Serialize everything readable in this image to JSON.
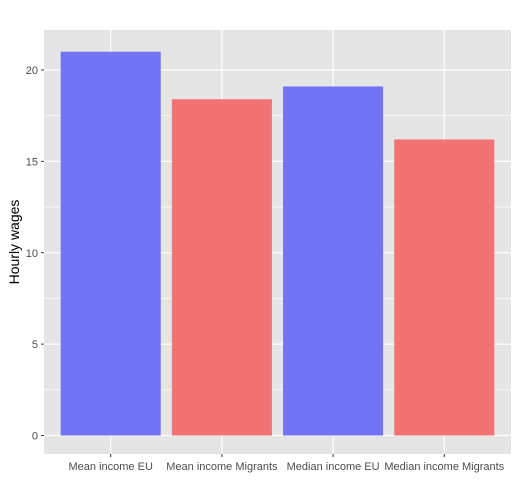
{
  "chart_data": {
    "type": "bar",
    "categories": [
      "Mean income EU",
      "Mean income Migrants",
      "Median income EU",
      "Median income Migrants"
    ],
    "values": [
      21.0,
      18.4,
      19.1,
      16.2
    ],
    "bar_colors": [
      "#7373f5",
      "#f27373",
      "#7373f5",
      "#f27373"
    ],
    "panel_background": "#e5e5e5",
    "gridline_color": "#ffffff",
    "title": "",
    "xlabel": "",
    "ylabel": "Hourly wages",
    "ylim": [
      0,
      22
    ],
    "yticks": [
      0,
      5,
      10,
      15,
      20
    ],
    "grid": true,
    "legend": "none"
  }
}
